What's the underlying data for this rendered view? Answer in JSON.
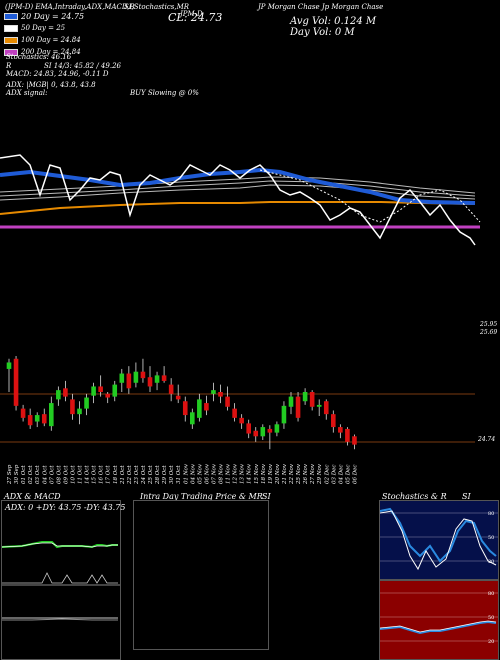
{
  "header": {
    "symbol_line": "(JPM-D) EMA,Intraday,ADX,MACD,B",
    "stoch_line": "SI,Stochastics,MR",
    "name_line": "JP Morgan Chase Jp Morgan Chase",
    "cl_label": "CL: 24.73",
    "ticker_short": "JPM-D",
    "avg_vol": "Avg Vol: 0.124  M",
    "day_vol": "Day Vol: 0   M"
  },
  "legend": [
    {
      "label": "20 Day = 24.75",
      "color": "#1f5bd6"
    },
    {
      "label": "50 Day = 25",
      "color": "#ffffff"
    },
    {
      "label": "100 Day = 24.84",
      "color": "#e68a00"
    },
    {
      "label": "200 Day = 24.84",
      "color": "#c040c0"
    }
  ],
  "stats": {
    "stochastics": "Stochastics: 46.16",
    "si_line": "SI 14/3: 45.82 / 49.26",
    "r_label": "R",
    "macd": "MACD: 24.83, 24.96, -0.11 D",
    "adx_line": "ADX:                    |MGB| 0, 43.8, 43.8",
    "adx_signal": "ADX  signal:",
    "buy_text": "BUY Slowing @ 0%"
  },
  "price_axis": {
    "top_labels": [
      "25.95",
      "25.69"
    ],
    "bottom_label": "24.74"
  },
  "dates": [
    "27 Sep",
    "30 Sep",
    "01 Oct",
    "02 Oct",
    "03 Oct",
    "04 Oct",
    "07 Oct",
    "08 Oct",
    "09 Oct",
    "10 Oct",
    "11 Oct",
    "14 Oct",
    "15 Oct",
    "16 Oct",
    "17 Oct",
    "18 Oct",
    "21 Oct",
    "22 Oct",
    "23 Oct",
    "24 Oct",
    "25 Oct",
    "28 Oct",
    "29 Oct",
    "30 Oct",
    "31 Oct",
    "01 Nov",
    "04 Nov",
    "05 Nov",
    "06 Nov",
    "07 Nov",
    "08 Nov",
    "11 Nov",
    "12 Nov",
    "13 Nov",
    "14 Nov",
    "15 Nov",
    "18 Nov",
    "19 Nov",
    "20 Nov",
    "21 Nov",
    "22 Nov",
    "25 Nov",
    "26 Nov",
    "27 Nov",
    "29 Nov",
    "02 Dec",
    "03 Dec",
    "04 Dec",
    "05 Dec",
    "06 Dec"
  ],
  "panels": {
    "adx_title": "ADX  & MACD",
    "adx_values": "ADX: 0   +DY: 43.75  -DY: 43.75",
    "intra_title": "Intra Day Trading Price  & MR",
    "intra_si": "SI",
    "stoch_title": "Stochastics & R",
    "stoch_si": "SI",
    "stoch_ticks": [
      "80",
      "50",
      "20"
    ],
    "r_ticks": [
      "80",
      "50",
      "20"
    ]
  },
  "colors": {
    "ema20": "#1f5bd6",
    "ema50": "#ffffff",
    "ema100": "#e68a00",
    "ema200": "#c040c0",
    "up": "#22cc22",
    "down": "#dd1111"
  },
  "chart_data": {
    "type": "candlestick",
    "title": "",
    "x": [
      "27 Sep",
      "30 Sep",
      "01 Oct",
      "02 Oct",
      "03 Oct",
      "04 Oct",
      "07 Oct",
      "08 Oct",
      "09 Oct",
      "10 Oct",
      "11 Oct",
      "14 Oct",
      "15 Oct",
      "16 Oct",
      "17 Oct",
      "18 Oct",
      "21 Oct",
      "22 Oct",
      "23 Oct",
      "24 Oct",
      "25 Oct",
      "28 Oct",
      "29 Oct",
      "30 Oct",
      "31 Oct",
      "01 Nov",
      "04 Nov",
      "05 Nov",
      "06 Nov",
      "07 Nov",
      "08 Nov",
      "11 Nov",
      "12 Nov",
      "13 Nov",
      "14 Nov",
      "15 Nov",
      "18 Nov",
      "19 Nov",
      "20 Nov",
      "21 Nov",
      "22 Nov",
      "25 Nov",
      "26 Nov",
      "27 Nov",
      "29 Nov",
      "02 Dec",
      "03 Dec",
      "04 Dec",
      "05 Dec",
      "06 Dec"
    ],
    "ylim": [
      24.65,
      25.95
    ],
    "candles": [
      {
        "o": 25.55,
        "h": 25.66,
        "l": 25.3,
        "c": 25.62
      },
      {
        "o": 25.66,
        "h": 25.69,
        "l": 25.1,
        "c": 25.15
      },
      {
        "o": 25.12,
        "h": 25.16,
        "l": 24.98,
        "c": 25.02
      },
      {
        "o": 25.05,
        "h": 25.12,
        "l": 24.9,
        "c": 24.94
      },
      {
        "o": 24.98,
        "h": 25.08,
        "l": 24.92,
        "c": 25.05
      },
      {
        "o": 25.06,
        "h": 25.12,
        "l": 24.93,
        "c": 24.96
      },
      {
        "o": 24.93,
        "h": 25.25,
        "l": 24.88,
        "c": 25.18
      },
      {
        "o": 25.22,
        "h": 25.36,
        "l": 25.15,
        "c": 25.32
      },
      {
        "o": 25.34,
        "h": 25.42,
        "l": 25.2,
        "c": 25.25
      },
      {
        "o": 25.22,
        "h": 25.28,
        "l": 25.0,
        "c": 25.06
      },
      {
        "o": 25.06,
        "h": 25.2,
        "l": 24.95,
        "c": 25.12
      },
      {
        "o": 25.12,
        "h": 25.28,
        "l": 25.05,
        "c": 25.24
      },
      {
        "o": 25.26,
        "h": 25.4,
        "l": 25.18,
        "c": 25.36
      },
      {
        "o": 25.36,
        "h": 25.48,
        "l": 25.25,
        "c": 25.3
      },
      {
        "o": 25.28,
        "h": 25.3,
        "l": 25.18,
        "c": 25.24
      },
      {
        "o": 25.25,
        "h": 25.42,
        "l": 25.2,
        "c": 25.38
      },
      {
        "o": 25.4,
        "h": 25.55,
        "l": 25.3,
        "c": 25.5
      },
      {
        "o": 25.5,
        "h": 25.58,
        "l": 25.28,
        "c": 25.34
      },
      {
        "o": 25.4,
        "h": 25.62,
        "l": 25.35,
        "c": 25.52
      },
      {
        "o": 25.52,
        "h": 25.66,
        "l": 25.4,
        "c": 25.45
      },
      {
        "o": 25.46,
        "h": 25.58,
        "l": 25.3,
        "c": 25.36
      },
      {
        "o": 25.4,
        "h": 25.52,
        "l": 25.32,
        "c": 25.48
      },
      {
        "o": 25.48,
        "h": 25.58,
        "l": 25.4,
        "c": 25.42
      },
      {
        "o": 25.38,
        "h": 25.45,
        "l": 25.2,
        "c": 25.28
      },
      {
        "o": 25.26,
        "h": 25.38,
        "l": 25.18,
        "c": 25.22
      },
      {
        "o": 25.2,
        "h": 25.25,
        "l": 24.98,
        "c": 25.05
      },
      {
        "o": 24.95,
        "h": 25.12,
        "l": 24.9,
        "c": 25.08
      },
      {
        "o": 25.02,
        "h": 25.28,
        "l": 24.98,
        "c": 25.22
      },
      {
        "o": 25.18,
        "h": 25.26,
        "l": 25.05,
        "c": 25.1
      },
      {
        "o": 25.28,
        "h": 25.4,
        "l": 25.2,
        "c": 25.32
      },
      {
        "o": 25.3,
        "h": 25.38,
        "l": 25.18,
        "c": 25.25
      },
      {
        "o": 25.25,
        "h": 25.36,
        "l": 25.1,
        "c": 25.14
      },
      {
        "o": 25.12,
        "h": 25.18,
        "l": 24.98,
        "c": 25.02
      },
      {
        "o": 25.02,
        "h": 25.06,
        "l": 24.9,
        "c": 24.96
      },
      {
        "o": 24.96,
        "h": 25.0,
        "l": 24.8,
        "c": 24.85
      },
      {
        "o": 24.88,
        "h": 24.92,
        "l": 24.76,
        "c": 24.82
      },
      {
        "o": 24.82,
        "h": 24.95,
        "l": 24.78,
        "c": 24.92
      },
      {
        "o": 24.9,
        "h": 24.94,
        "l": 24.68,
        "c": 24.86
      },
      {
        "o": 24.86,
        "h": 24.98,
        "l": 24.82,
        "c": 24.95
      },
      {
        "o": 24.96,
        "h": 25.2,
        "l": 24.9,
        "c": 25.15
      },
      {
        "o": 25.14,
        "h": 25.3,
        "l": 25.06,
        "c": 25.25
      },
      {
        "o": 25.25,
        "h": 25.3,
        "l": 24.98,
        "c": 25.02
      },
      {
        "o": 25.2,
        "h": 25.34,
        "l": 25.16,
        "c": 25.3
      },
      {
        "o": 25.3,
        "h": 25.32,
        "l": 25.1,
        "c": 25.14
      },
      {
        "o": 25.14,
        "h": 25.22,
        "l": 25.04,
        "c": 25.16
      },
      {
        "o": 25.2,
        "h": 25.22,
        "l": 25.0,
        "c": 25.06
      },
      {
        "o": 25.06,
        "h": 25.1,
        "l": 24.86,
        "c": 24.92
      },
      {
        "o": 24.92,
        "h": 24.95,
        "l": 24.8,
        "c": 24.86
      },
      {
        "o": 24.9,
        "h": 24.92,
        "l": 24.72,
        "c": 24.76
      },
      {
        "o": 24.82,
        "h": 24.84,
        "l": 24.68,
        "c": 24.73
      }
    ]
  }
}
